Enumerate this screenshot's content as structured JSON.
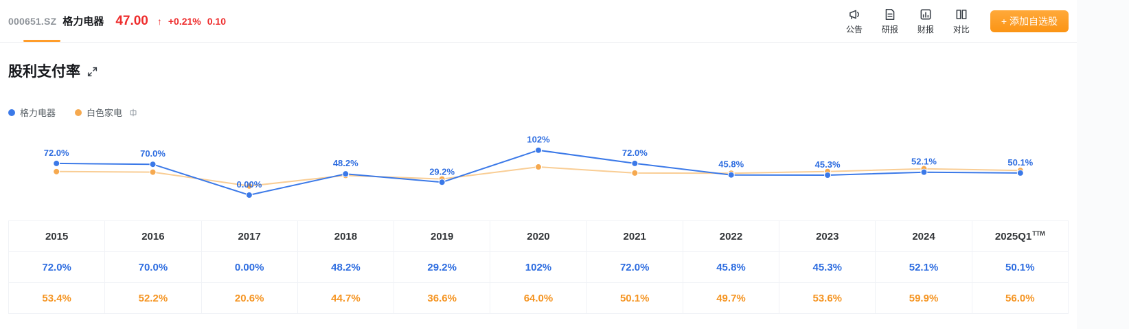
{
  "header": {
    "code": "000651.SZ",
    "name": "格力电器",
    "price": "47.00",
    "arrow": "↑",
    "change_pct": "+0.21%",
    "change_val": "0.10",
    "actions": [
      {
        "key": "announcements",
        "label": "公告",
        "icon": "announcement-icon"
      },
      {
        "key": "research-reports",
        "label": "研报",
        "icon": "research-report-icon"
      },
      {
        "key": "financial-reports",
        "label": "财报",
        "icon": "financial-report-icon"
      },
      {
        "key": "compare",
        "label": "对比",
        "icon": "compare-icon"
      }
    ],
    "add_button": "+ 添加自选股"
  },
  "section": {
    "title": "股利支付率"
  },
  "legend": [
    {
      "key": "gree",
      "label": "格力电器",
      "color": "#3b79e8"
    },
    {
      "key": "industry",
      "label": "白色家电",
      "color": "#f6a94f",
      "badge": "industry-info-icon"
    }
  ],
  "chart_data": {
    "type": "line",
    "categories": [
      "2015",
      "2016",
      "2017",
      "2018",
      "2019",
      "2020",
      "2021",
      "2022",
      "2023",
      "2024",
      "2025Q1"
    ],
    "series": [
      {
        "key": "gree",
        "name": "格力电器",
        "color": "#3b79e8",
        "label_color": "#2e6de0",
        "values": [
          72.0,
          70.0,
          0.0,
          48.2,
          29.2,
          102,
          72.0,
          45.8,
          45.3,
          52.1,
          50.1
        ],
        "labels": [
          "72.0%",
          "70.0%",
          "0.00%",
          "48.2%",
          "29.2%",
          "102%",
          "72.0%",
          "45.8%",
          "45.3%",
          "52.1%",
          "50.1%"
        ]
      },
      {
        "key": "industry",
        "name": "白色家电",
        "color": "#f6a94f",
        "line_color": "#f9cd94",
        "values": [
          53.4,
          52.2,
          20.6,
          44.7,
          36.6,
          64.0,
          50.1,
          49.7,
          53.6,
          59.9,
          56.0
        ]
      }
    ],
    "ylim": [
      0,
      110
    ],
    "grid": false,
    "legend_position": "top-left"
  },
  "table": {
    "columns": [
      {
        "label": "2015"
      },
      {
        "label": "2016"
      },
      {
        "label": "2017"
      },
      {
        "label": "2018"
      },
      {
        "label": "2019"
      },
      {
        "label": "2020"
      },
      {
        "label": "2021"
      },
      {
        "label": "2022"
      },
      {
        "label": "2023"
      },
      {
        "label": "2024"
      },
      {
        "label": "2025Q1",
        "sup": "TTM"
      }
    ],
    "rows": [
      {
        "key": "gree",
        "name": "格力电器",
        "color": "#2e6de0",
        "values": [
          "72.0%",
          "70.0%",
          "0.00%",
          "48.2%",
          "29.2%",
          "102%",
          "72.0%",
          "45.8%",
          "45.3%",
          "52.1%",
          "50.1%"
        ]
      },
      {
        "key": "industry",
        "name": "白色家电",
        "color": "#f59523",
        "values": [
          "53.4%",
          "52.2%",
          "20.6%",
          "44.7%",
          "36.6%",
          "64.0%",
          "50.1%",
          "49.7%",
          "53.6%",
          "59.9%",
          "56.0%"
        ]
      }
    ]
  },
  "colors": {
    "accent_orange": "#ff9d2b",
    "quote_red": "#ee2c2c",
    "series_blue": "#3b79e8",
    "series_orange": "#f6a94f"
  }
}
